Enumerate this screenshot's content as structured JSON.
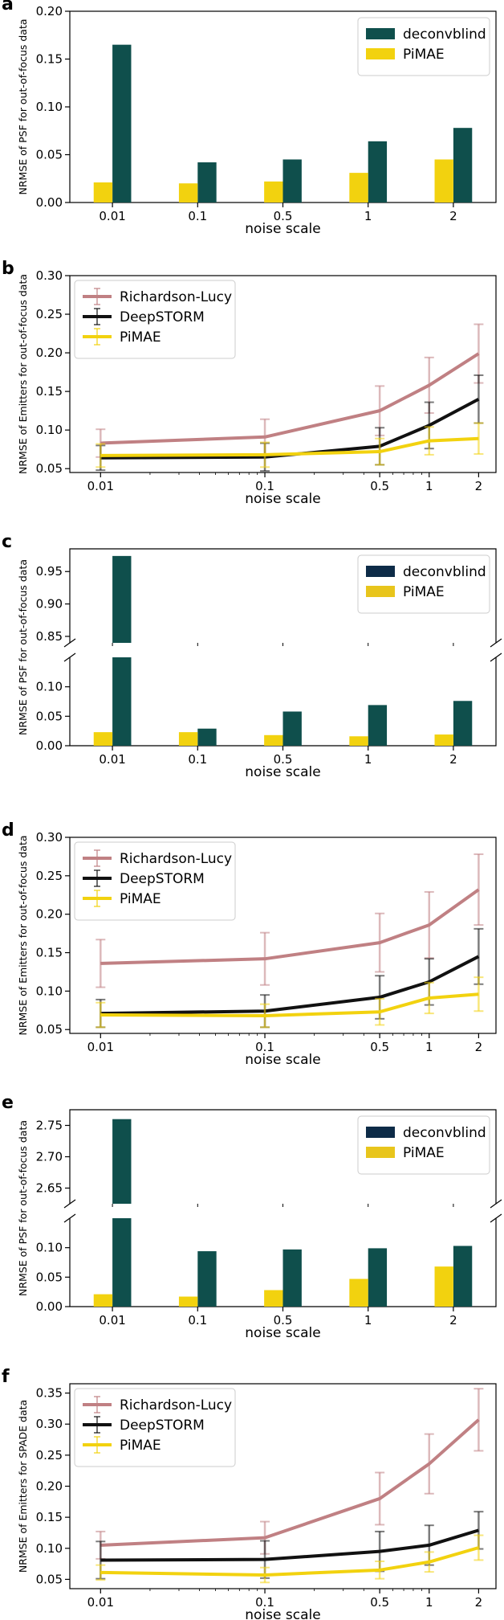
{
  "chart_data": [
    {
      "panel": "a",
      "type": "bar",
      "categories": [
        "0.01",
        "0.1",
        "0.5",
        "1",
        "2"
      ],
      "series": [
        {
          "name": "deconvblind",
          "color": "#0f4f4c",
          "values": [
            0.165,
            0.042,
            0.045,
            0.064,
            0.078
          ]
        },
        {
          "name": "PiMAE",
          "color": "#f2d20f",
          "values": [
            0.021,
            0.02,
            0.022,
            0.031,
            0.045
          ]
        }
      ],
      "xlabel": "noise scale",
      "ylabel": "NRMSE of PSF for out-of-focus data",
      "ylim": [
        0,
        0.2
      ],
      "yticks": [
        "0.00",
        "0.05",
        "0.10",
        "0.15",
        "0.20"
      ],
      "legend": "top-right"
    },
    {
      "panel": "b",
      "type": "line",
      "x": [
        0.01,
        0.1,
        0.5,
        1,
        2
      ],
      "xticks": [
        "0.01",
        "0.1",
        "0.5",
        "1",
        "2"
      ],
      "xscale": "log",
      "series": [
        {
          "name": "Richardson-Lucy",
          "color": "#c08083",
          "values": [
            0.083,
            0.091,
            0.125,
            0.158,
            0.199
          ],
          "errors": [
            0.018,
            0.023,
            0.032,
            0.036,
            0.038
          ]
        },
        {
          "name": "DeepSTORM",
          "color": "#111111",
          "values": [
            0.064,
            0.065,
            0.079,
            0.106,
            0.14
          ],
          "errors": [
            0.016,
            0.018,
            0.024,
            0.03,
            0.031
          ]
        },
        {
          "name": "PiMAE",
          "color": "#f2d20f",
          "values": [
            0.067,
            0.068,
            0.072,
            0.086,
            0.089
          ],
          "errors": [
            0.015,
            0.016,
            0.017,
            0.018,
            0.02
          ]
        }
      ],
      "xlabel": "noise scale",
      "ylabel": "NRMSE of Emitters for out-of-focus data",
      "ylim": [
        0.045,
        0.3
      ],
      "yticks": [
        "0.05",
        "0.10",
        "0.15",
        "0.20",
        "0.25",
        "0.30"
      ],
      "legend": "top-left"
    },
    {
      "panel": "c",
      "type": "bar",
      "broken_axis": true,
      "categories": [
        "0.01",
        "0.1",
        "0.5",
        "1",
        "2"
      ],
      "series": [
        {
          "name": "deconvblind",
          "color": "#0f4f4c",
          "values": [
            0.974,
            0.029,
            0.058,
            0.069,
            0.076
          ]
        },
        {
          "name": "PiMAE",
          "color": "#f2d20f",
          "values": [
            0.023,
            0.023,
            0.018,
            0.016,
            0.019
          ]
        }
      ],
      "legend_colors": [
        "#0d2b47",
        "#e8c51c"
      ],
      "upper_ylim": [
        0.84,
        0.985
      ],
      "upper_yticks": [
        "0.85",
        "0.90",
        "0.95"
      ],
      "lower_ylim": [
        0,
        0.15
      ],
      "lower_yticks": [
        "0.00",
        "0.05",
        "0.10"
      ],
      "xlabel": "noise scale",
      "ylabel": "NRMSE of PSF for out-of-focus data",
      "legend": "top-right"
    },
    {
      "panel": "d",
      "type": "line",
      "x": [
        0.01,
        0.1,
        0.5,
        1,
        2
      ],
      "xticks": [
        "0.01",
        "0.1",
        "0.5",
        "1",
        "2"
      ],
      "xscale": "log",
      "series": [
        {
          "name": "Richardson-Lucy",
          "color": "#c08083",
          "values": [
            0.136,
            0.142,
            0.163,
            0.186,
            0.232
          ],
          "errors": [
            0.031,
            0.034,
            0.038,
            0.043,
            0.046
          ]
        },
        {
          "name": "DeepSTORM",
          "color": "#111111",
          "values": [
            0.071,
            0.074,
            0.092,
            0.112,
            0.145
          ],
          "errors": [
            0.018,
            0.021,
            0.028,
            0.03,
            0.036
          ]
        },
        {
          "name": "PiMAE",
          "color": "#f2d20f",
          "values": [
            0.069,
            0.068,
            0.073,
            0.091,
            0.096
          ],
          "errors": [
            0.016,
            0.015,
            0.017,
            0.02,
            0.022
          ]
        }
      ],
      "xlabel": "noise scale",
      "ylabel": "NRMSE of Emitters for out-of-focus data",
      "ylim": [
        0.045,
        0.3
      ],
      "yticks": [
        "0.05",
        "0.10",
        "0.15",
        "0.20",
        "0.25",
        "0.30"
      ],
      "legend": "top-left"
    },
    {
      "panel": "e",
      "type": "bar",
      "broken_axis": true,
      "categories": [
        "0.01",
        "0.1",
        "0.5",
        "1",
        "2"
      ],
      "series": [
        {
          "name": "deconvblind",
          "color": "#0f4f4c",
          "values": [
            2.76,
            0.094,
            0.097,
            0.099,
            0.103
          ]
        },
        {
          "name": "PiMAE",
          "color": "#f2d20f",
          "values": [
            0.021,
            0.017,
            0.028,
            0.047,
            0.068
          ]
        }
      ],
      "legend_colors": [
        "#0d2b47",
        "#e8c51c"
      ],
      "upper_ylim": [
        2.625,
        2.775
      ],
      "upper_yticks": [
        "2.65",
        "2.70",
        "2.75"
      ],
      "lower_ylim": [
        0,
        0.15
      ],
      "lower_yticks": [
        "0.00",
        "0.05",
        "0.10"
      ],
      "xlabel": "noise scale",
      "ylabel": "NRMSE of PSF for out-of-focus data",
      "legend": "top-right"
    },
    {
      "panel": "f",
      "type": "line",
      "x": [
        0.01,
        0.1,
        0.5,
        1,
        2
      ],
      "xticks": [
        "0.01",
        "0.1",
        "0.5",
        "1",
        "2"
      ],
      "xscale": "log",
      "series": [
        {
          "name": "Richardson-Lucy",
          "color": "#c08083",
          "values": [
            0.105,
            0.117,
            0.18,
            0.236,
            0.307
          ],
          "errors": [
            0.022,
            0.026,
            0.042,
            0.048,
            0.05
          ]
        },
        {
          "name": "DeepSTORM",
          "color": "#111111",
          "values": [
            0.081,
            0.082,
            0.095,
            0.105,
            0.129
          ],
          "errors": [
            0.03,
            0.03,
            0.032,
            0.032,
            0.03
          ]
        },
        {
          "name": "PiMAE",
          "color": "#f2d20f",
          "values": [
            0.061,
            0.057,
            0.065,
            0.078,
            0.101
          ],
          "errors": [
            0.012,
            0.012,
            0.014,
            0.016,
            0.02
          ]
        }
      ],
      "xlabel": "noise scale",
      "ylabel": "NRMSE of Emitters for SPADE data",
      "ylim": [
        0.035,
        0.365
      ],
      "yticks": [
        "0.05",
        "0.10",
        "0.15",
        "0.20",
        "0.25",
        "0.30",
        "0.35"
      ],
      "legend": "top-left"
    }
  ]
}
